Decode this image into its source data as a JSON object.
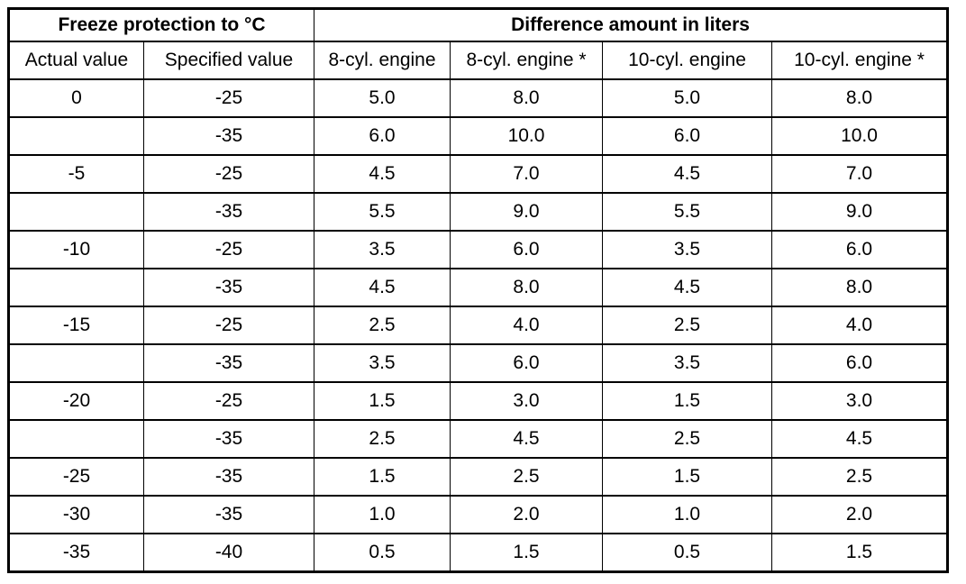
{
  "table": {
    "header_groups": [
      {
        "label": "Freeze protection to °C",
        "colspan": 2
      },
      {
        "label": "Difference amount in liters",
        "colspan": 4
      }
    ],
    "columns": [
      "Actual value",
      "Specified value",
      "8-cyl. engine",
      "8-cyl. engine *",
      "10-cyl. engine",
      "10-cyl. engine *"
    ],
    "rows": [
      [
        "0",
        "-25",
        "5.0",
        "8.0",
        "5.0",
        "8.0"
      ],
      [
        "",
        "-35",
        "6.0",
        "10.0",
        "6.0",
        "10.0"
      ],
      [
        "-5",
        "-25",
        "4.5",
        "7.0",
        "4.5",
        "7.0"
      ],
      [
        "",
        "-35",
        "5.5",
        "9.0",
        "5.5",
        "9.0"
      ],
      [
        "-10",
        "-25",
        "3.5",
        "6.0",
        "3.5",
        "6.0"
      ],
      [
        "",
        "-35",
        "4.5",
        "8.0",
        "4.5",
        "8.0"
      ],
      [
        "-15",
        "-25",
        "2.5",
        "4.0",
        "2.5",
        "4.0"
      ],
      [
        "",
        "-35",
        "3.5",
        "6.0",
        "3.5",
        "6.0"
      ],
      [
        "-20",
        "-25",
        "1.5",
        "3.0",
        "1.5",
        "3.0"
      ],
      [
        "",
        "-35",
        "2.5",
        "4.5",
        "2.5",
        "4.5"
      ],
      [
        "-25",
        "-35",
        "1.5",
        "2.5",
        "1.5",
        "2.5"
      ],
      [
        "-30",
        "-35",
        "1.0",
        "2.0",
        "1.0",
        "2.0"
      ],
      [
        "-35",
        "-40",
        "0.5",
        "1.5",
        "0.5",
        "1.5"
      ]
    ]
  },
  "colors": {
    "border": "#000000",
    "text": "#000000",
    "background": "#ffffff"
  }
}
